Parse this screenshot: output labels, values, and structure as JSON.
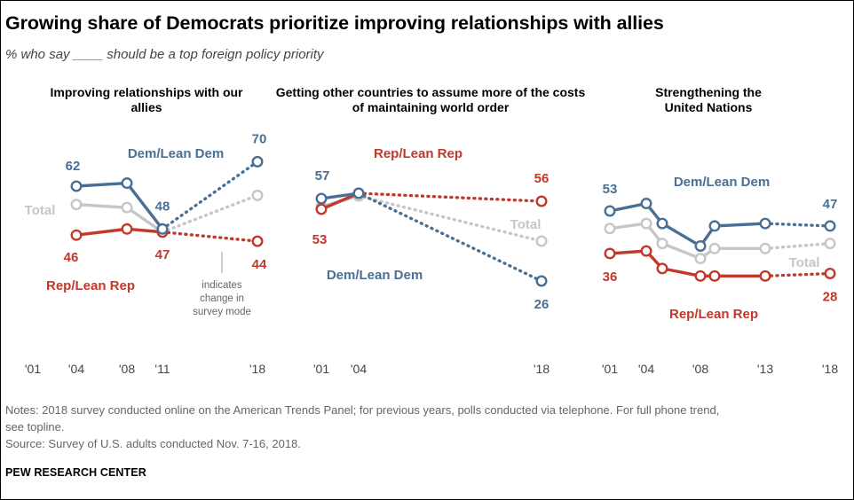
{
  "header": {
    "title": "Growing share of Democrats prioritize improving relationships with allies",
    "subtitle": "% who say ____ should be a top foreign policy priority"
  },
  "colors": {
    "dem": "#4a6f94",
    "rep": "#c0392b",
    "total": "#c6c6c6"
  },
  "chart_data": [
    {
      "type": "line",
      "title": "Improving relationships with our allies",
      "x_tick_labels": [
        "'01",
        "'04",
        "'08",
        "'11",
        "'18"
      ],
      "series": [
        {
          "name": "Dem/Lean Dem",
          "x": [
            "'04",
            "'08",
            "'11",
            "'18"
          ],
          "values": [
            62,
            63,
            48,
            70
          ]
        },
        {
          "name": "Total",
          "x": [
            "'04",
            "'08",
            "'11",
            "'18"
          ],
          "values": [
            56,
            55,
            47,
            59
          ]
        },
        {
          "name": "Rep/Lean Rep",
          "x": [
            "'04",
            "'08",
            "'11",
            "'18"
          ],
          "values": [
            46,
            48,
            47,
            44
          ]
        }
      ],
      "value_labels": [
        "62",
        "48",
        "70",
        "46",
        "47",
        "44"
      ],
      "series_labels": [
        "Dem/Lean Dem",
        "Total",
        "Rep/Lean Rep"
      ],
      "annotation": "indicates change in survey mode"
    },
    {
      "type": "line",
      "title": "Getting other countries to assume more of the costs of maintaining world order",
      "x_tick_labels": [
        "'01",
        "'04",
        "'18"
      ],
      "series": [
        {
          "name": "Dem/Lean Dem",
          "x": [
            "'01",
            "'04",
            "'18"
          ],
          "values": [
            57,
            59,
            26
          ]
        },
        {
          "name": "Total",
          "x": [
            "'01",
            "'04",
            "'18"
          ],
          "values": [
            54,
            58,
            41
          ]
        },
        {
          "name": "Rep/Lean Rep",
          "x": [
            "'01",
            "'04",
            "'18"
          ],
          "values": [
            53,
            59,
            56
          ]
        }
      ],
      "value_labels": [
        "57",
        "53",
        "56",
        "26"
      ],
      "series_labels": [
        "Rep/Lean Rep",
        "Total",
        "Dem/Lean Dem"
      ]
    },
    {
      "type": "line",
      "title": "Strengthening the United Nations",
      "x_tick_labels": [
        "'01",
        "'04",
        "'08",
        "'13",
        "'18"
      ],
      "series": [
        {
          "name": "Dem/Lean Dem",
          "x": [
            2001,
            2004,
            2005,
            2008,
            2009,
            2013,
            2018
          ],
          "values": [
            53,
            56,
            48,
            39,
            47,
            48,
            47
          ]
        },
        {
          "name": "Total",
          "x": [
            2001,
            2004,
            2005,
            2008,
            2009,
            2013,
            2018
          ],
          "values": [
            46,
            48,
            40,
            34,
            38,
            38,
            40
          ]
        },
        {
          "name": "Rep/Lean Rep",
          "x": [
            2001,
            2004,
            2005,
            2008,
            2009,
            2013,
            2018
          ],
          "values": [
            36,
            37,
            30,
            27,
            27,
            27,
            28
          ]
        }
      ],
      "value_labels": [
        "53",
        "47",
        "36",
        "28"
      ],
      "series_labels": [
        "Dem/Lean Dem",
        "Total",
        "Rep/Lean Rep"
      ]
    }
  ],
  "footer": {
    "notes_line1": "Notes: 2018 survey conducted online on the American Trends Panel; for previous years, polls conducted via telephone. For full phone trend,",
    "notes_line2": "see topline.",
    "source": "Source: Survey of U.S. adults conducted Nov. 7-16, 2018.",
    "credit": "PEW RESEARCH CENTER"
  }
}
